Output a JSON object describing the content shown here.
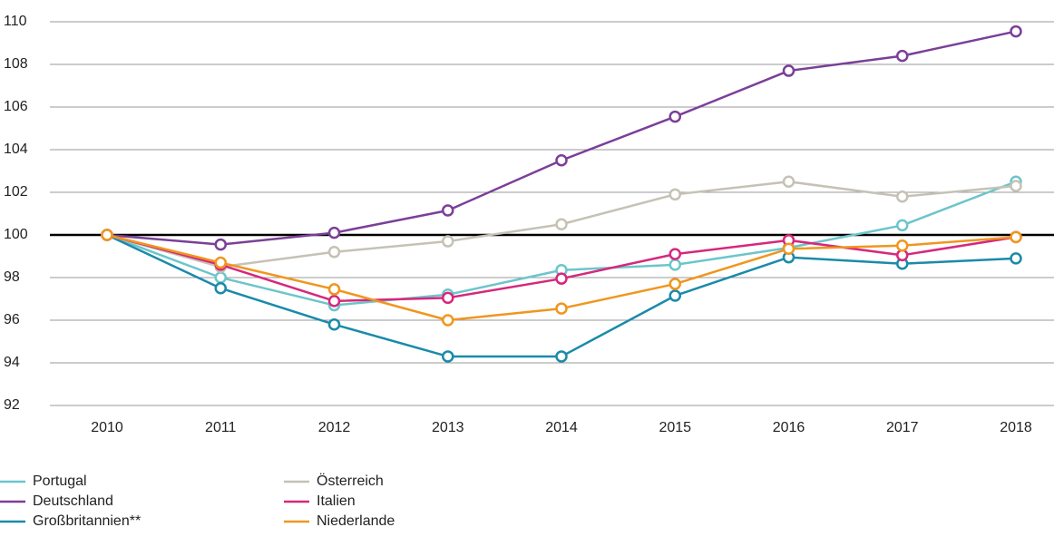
{
  "chart_data": {
    "type": "line",
    "x": [
      "2010",
      "2011",
      "2012",
      "2013",
      "2014",
      "2015",
      "2016",
      "2017",
      "2018"
    ],
    "series": [
      {
        "name": "Portugal",
        "color": "#6cc5cc",
        "values": [
          100,
          98.0,
          96.7,
          97.2,
          98.35,
          98.6,
          99.4,
          100.45,
          102.5
        ]
      },
      {
        "name": "Deutschland",
        "color": "#7b3f98",
        "values": [
          100,
          99.55,
          100.1,
          101.15,
          103.5,
          105.55,
          107.7,
          108.4,
          109.55
        ]
      },
      {
        "name": "Großbritannien**",
        "color": "#1a8aaa",
        "values": [
          100,
          97.5,
          95.8,
          94.3,
          94.3,
          97.15,
          98.95,
          98.65,
          98.9
        ]
      },
      {
        "name": "Österreich",
        "color": "#c5c2b5",
        "values": [
          100,
          98.5,
          99.2,
          99.7,
          100.5,
          101.9,
          102.5,
          101.8,
          102.3
        ]
      },
      {
        "name": "Italien",
        "color": "#d6287c",
        "values": [
          100,
          98.6,
          96.9,
          97.05,
          97.95,
          99.1,
          99.75,
          99.05,
          99.9
        ]
      },
      {
        "name": "Niederlande",
        "color": "#f0961e",
        "values": [
          100,
          98.7,
          97.45,
          96.0,
          96.55,
          97.7,
          99.35,
          99.5,
          99.9
        ]
      }
    ],
    "ylim": [
      92,
      110
    ],
    "yticks": [
      92,
      94,
      96,
      98,
      100,
      102,
      104,
      106,
      108,
      110
    ],
    "baseline": 100,
    "grid": true
  }
}
